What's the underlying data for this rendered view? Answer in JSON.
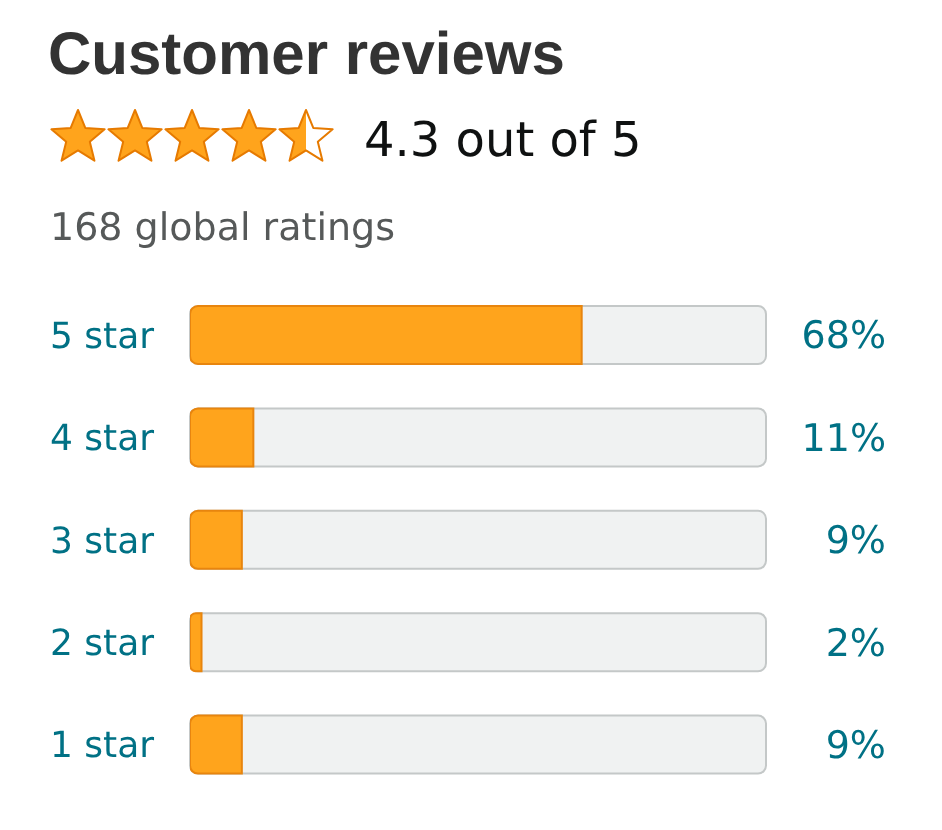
{
  "chart_data": {
    "type": "bar",
    "orientation": "horizontal",
    "title": "Customer reviews",
    "subtitle": "4.3 out of 5",
    "annotations": [
      "168 global ratings"
    ],
    "categories": [
      "5 star",
      "4 star",
      "3 star",
      "2 star",
      "1 star"
    ],
    "values": [
      68,
      11,
      9,
      2,
      9
    ],
    "value_labels": [
      "68%",
      "11%",
      "9%",
      "2%",
      "9%"
    ],
    "color": "#ffa41c",
    "xlim": [
      0,
      100
    ],
    "tick_labels": "y"
  }
}
